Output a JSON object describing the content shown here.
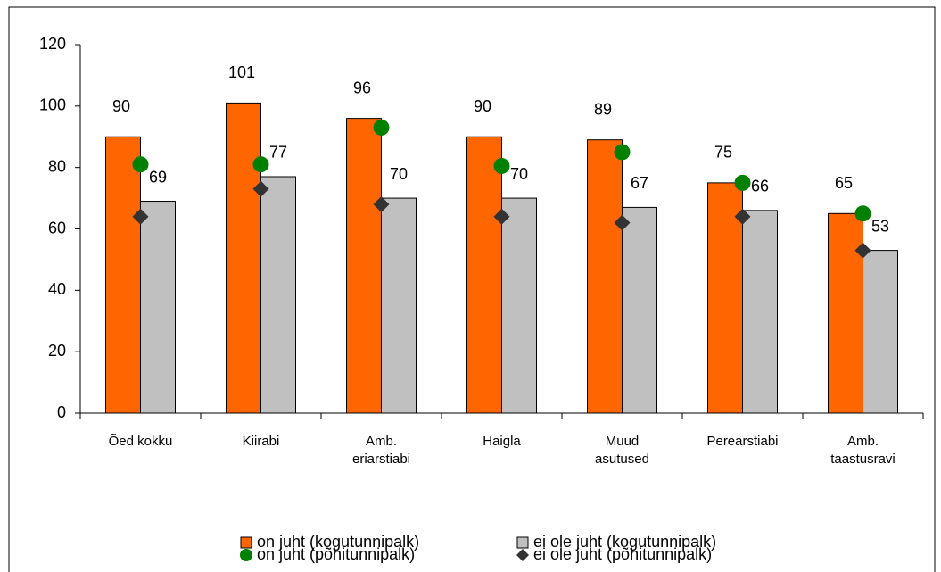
{
  "chart_data": {
    "type": "bar",
    "categories": [
      "Õed kokku",
      "Kiirabi",
      "Amb.\neriarstiabi",
      "Haigla",
      "Muud\nasutused",
      "Perearstiabi",
      "Amb.\ntaastusravi"
    ],
    "series": [
      {
        "name": "on juht (kogutunnipalk)",
        "color": "#ff6600",
        "marker": "bar",
        "values": [
          90,
          101,
          96,
          90,
          89,
          75,
          65
        ]
      },
      {
        "name": "ei ole juht (kogutunnipalk)",
        "color": "#c0c0c0",
        "marker": "bar",
        "values": [
          69,
          77,
          70,
          70,
          67,
          66,
          53
        ]
      },
      {
        "name": "on juht (põhitunnipalk)",
        "color": "#008000",
        "marker": "circle",
        "values": [
          81,
          81,
          93,
          80.5,
          85,
          75,
          65
        ]
      },
      {
        "name": "ei ole juht (põhitunnipalk)",
        "color": "#333333",
        "marker": "diamond",
        "values": [
          64,
          73,
          68,
          64,
          62,
          64,
          53
        ]
      }
    ],
    "ylim": [
      0,
      120
    ],
    "yticks": [
      0,
      20,
      40,
      60,
      80,
      100,
      120
    ]
  }
}
